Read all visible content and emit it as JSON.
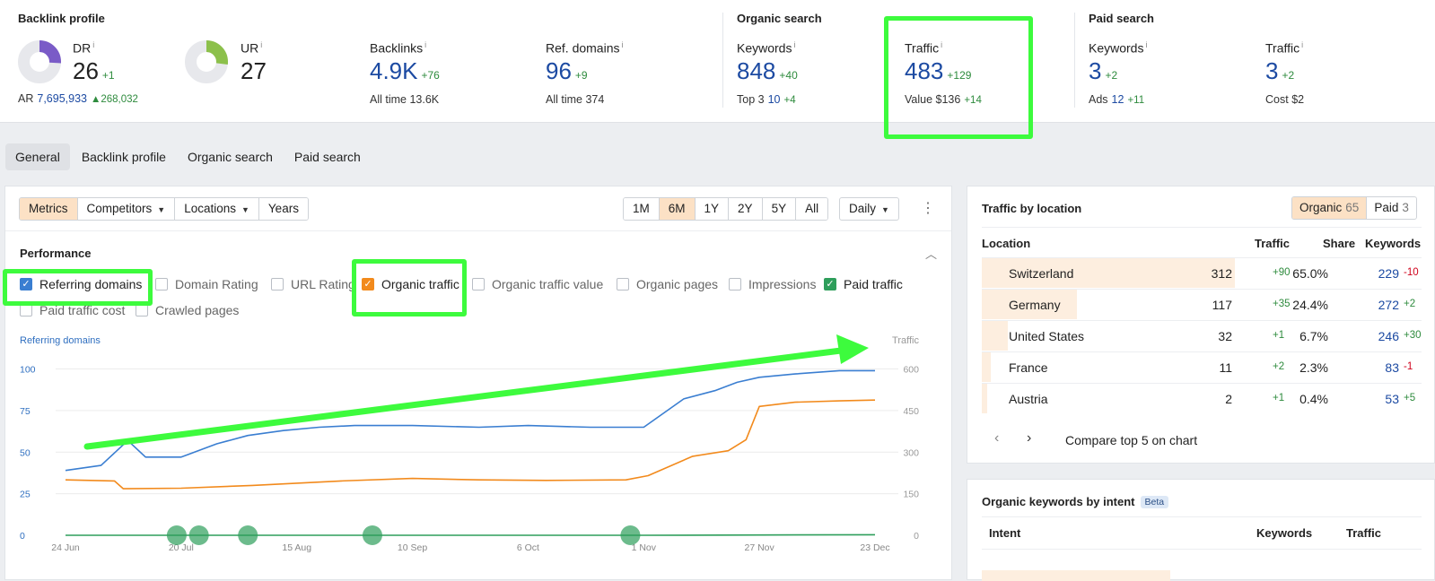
{
  "summary": {
    "backlink_profile": {
      "title": "Backlink profile",
      "dr": {
        "label": "DR",
        "value": "26",
        "delta": "+1",
        "score": 26
      },
      "ar": {
        "label": "AR",
        "value": "7,695,933",
        "delta": "268,032"
      },
      "ur": {
        "label": "UR",
        "value": "27",
        "score": 27
      },
      "backlinks": {
        "label": "Backlinks",
        "value": "4.9K",
        "delta": "+76",
        "sub_label": "All time",
        "sub_value": "13.6K"
      },
      "ref_domains": {
        "label": "Ref. domains",
        "value": "96",
        "delta": "+9",
        "sub_label": "All time",
        "sub_value": "374"
      }
    },
    "organic_search": {
      "title": "Organic search",
      "keywords": {
        "label": "Keywords",
        "value": "848",
        "delta": "+40",
        "sub_label": "Top 3",
        "sub_value": "10",
        "sub_delta": "+4"
      },
      "traffic": {
        "label": "Traffic",
        "value": "483",
        "delta": "+129",
        "sub_label": "Value",
        "sub_value": "$136",
        "sub_delta": "+14"
      }
    },
    "paid_search": {
      "title": "Paid search",
      "keywords": {
        "label": "Keywords",
        "value": "3",
        "delta": "+2",
        "sub_label": "Ads",
        "sub_value": "12",
        "sub_delta": "+11"
      },
      "traffic": {
        "label": "Traffic",
        "value": "3",
        "delta": "+2",
        "sub_label": "Cost",
        "sub_value": "$2"
      }
    },
    "info_glyph": "i"
  },
  "nav_tabs": [
    {
      "label": "General",
      "active": true
    },
    {
      "label": "Backlink profile"
    },
    {
      "label": "Organic search"
    },
    {
      "label": "Paid search"
    }
  ],
  "toolbar": {
    "left_buttons": [
      "Metrics",
      "Competitors",
      "Locations",
      "Years"
    ],
    "ranges": [
      "1M",
      "6M",
      "1Y",
      "2Y",
      "5Y",
      "All"
    ],
    "active_range": "6M",
    "granularity": "Daily"
  },
  "performance": {
    "title": "Performance",
    "checkboxes": [
      {
        "label": "Referring domains",
        "checked": true,
        "color": "#3a7ed1"
      },
      {
        "label": "Domain Rating",
        "checked": false
      },
      {
        "label": "URL Rating",
        "checked": false
      },
      {
        "label": "Organic traffic",
        "checked": true,
        "color": "#f28a1c"
      },
      {
        "label": "Organic traffic value",
        "checked": false
      },
      {
        "label": "Organic pages",
        "checked": false
      },
      {
        "label": "Impressions",
        "checked": false
      },
      {
        "label": "Paid traffic",
        "checked": true,
        "color": "#2e9e5b"
      },
      {
        "label": "Paid traffic cost",
        "checked": false
      },
      {
        "label": "Crawled pages",
        "checked": false
      }
    ]
  },
  "chart_data": {
    "type": "line",
    "left_axis_label": "Referring domains",
    "right_axis_label": "Traffic",
    "left_ticks": [
      0,
      25,
      50,
      75,
      100
    ],
    "right_ticks": [
      0,
      150,
      300,
      450,
      600
    ],
    "x_ticks": [
      "24 Jun",
      "20 Jul",
      "15 Aug",
      "10 Sep",
      "6 Oct",
      "1 Nov",
      "27 Nov",
      "23 Dec"
    ],
    "ylim_left": [
      0,
      110
    ],
    "ylim_right": [
      0,
      660
    ],
    "grid": true,
    "x_start_date": "24 Jun",
    "x_end_date": "23 Dec",
    "series": [
      {
        "name": "Referring domains",
        "axis": "left",
        "color": "#3a7ed1",
        "x": [
          "24 Jun",
          "2 Jul",
          "8 Jul",
          "12 Jul",
          "20 Jul",
          "28 Jul",
          "4 Aug",
          "12 Aug",
          "20 Aug",
          "28 Aug",
          "10 Sep",
          "25 Sep",
          "6 Oct",
          "20 Oct",
          "1 Nov",
          "10 Nov",
          "17 Nov",
          "22 Nov",
          "27 Nov",
          "5 Dec",
          "15 Dec",
          "23 Dec"
        ],
        "y": [
          39,
          42,
          57,
          47,
          47,
          55,
          60,
          63,
          65,
          66,
          66,
          65,
          66,
          65,
          65,
          82,
          87,
          92,
          95,
          97,
          99,
          99
        ]
      },
      {
        "name": "Organic traffic",
        "axis": "right",
        "color": "#f28a1c",
        "x": [
          "24 Jun",
          "5 Jul",
          "7 Jul",
          "20 Jul",
          "5 Aug",
          "25 Aug",
          "10 Sep",
          "25 Sep",
          "10 Oct",
          "28 Oct",
          "2 Nov",
          "12 Nov",
          "20 Nov",
          "24 Nov",
          "27 Nov",
          "5 Dec",
          "15 Dec",
          "23 Dec"
        ],
        "y": [
          200,
          196,
          168,
          170,
          180,
          196,
          205,
          200,
          198,
          200,
          215,
          285,
          305,
          345,
          465,
          480,
          485,
          488
        ]
      },
      {
        "name": "Paid traffic",
        "axis": "right",
        "color": "#2e9e5b",
        "x": [
          "24 Jun",
          "1 Nov",
          "23 Dec"
        ],
        "y": [
          0,
          0,
          2
        ]
      }
    ],
    "event_markers": [
      "19 Jul",
      "24 Jul",
      "4 Aug",
      "1 Sep",
      "29 Oct"
    ]
  },
  "traffic_by_location": {
    "title": "Traffic by location",
    "organic_label": "Organic",
    "organic_count": "65",
    "paid_label": "Paid",
    "paid_count": "3",
    "headers": {
      "location": "Location",
      "traffic": "Traffic",
      "share": "Share",
      "keywords": "Keywords"
    },
    "rows": [
      {
        "country": "Switzerland",
        "traffic": "312",
        "traffic_delta": "+90",
        "share": "65.0%",
        "share_value": 65.0,
        "keywords": "229",
        "kw_delta": "-10"
      },
      {
        "country": "Germany",
        "traffic": "117",
        "traffic_delta": "+35",
        "share": "24.4%",
        "share_value": 24.4,
        "keywords": "272",
        "kw_delta": "+2"
      },
      {
        "country": "United States",
        "traffic": "32",
        "traffic_delta": "+1",
        "share": "6.7%",
        "share_value": 6.7,
        "keywords": "246",
        "kw_delta": "+30"
      },
      {
        "country": "France",
        "traffic": "11",
        "traffic_delta": "+2",
        "share": "2.3%",
        "share_value": 2.3,
        "keywords": "83",
        "kw_delta": "-1"
      },
      {
        "country": "Austria",
        "traffic": "2",
        "traffic_delta": "+1",
        "share": "0.4%",
        "share_value": 0.4,
        "keywords": "53",
        "kw_delta": "+5"
      }
    ],
    "compare_label": "Compare top 5 on chart"
  },
  "organic_keywords_by_intent": {
    "title": "Organic keywords by intent",
    "badge": "Beta",
    "headers": {
      "intent": "Intent",
      "keywords": "Keywords",
      "traffic": "Traffic"
    }
  },
  "colors": {
    "accent_green_highlight": "#3dfb3d",
    "blue_value": "#1c4aa2",
    "delta_green": "#2e8b3d"
  }
}
